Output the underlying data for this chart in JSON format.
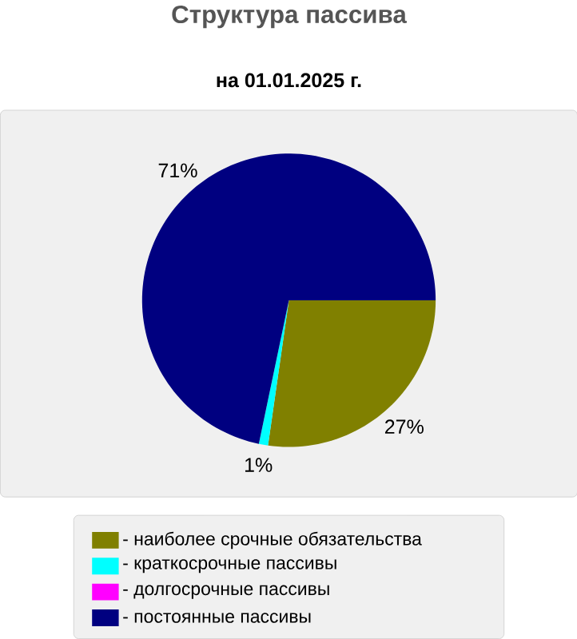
{
  "chart_data": {
    "type": "pie",
    "title": "Структура пассива",
    "subtitle": "на 01.01.2025 г.",
    "categories": [
      "- наиболее срочные обязательства",
      "- краткосрочные пассивы",
      "- долгосрочные пассивы",
      "- постоянные пассивы"
    ],
    "values": [
      27,
      1,
      0,
      71
    ],
    "colors": [
      "#808000",
      "#00ffff",
      "#ff00ff",
      "#000080"
    ],
    "value_labels": [
      "27%",
      "1%",
      null,
      "71%"
    ],
    "legend": "bottom"
  }
}
